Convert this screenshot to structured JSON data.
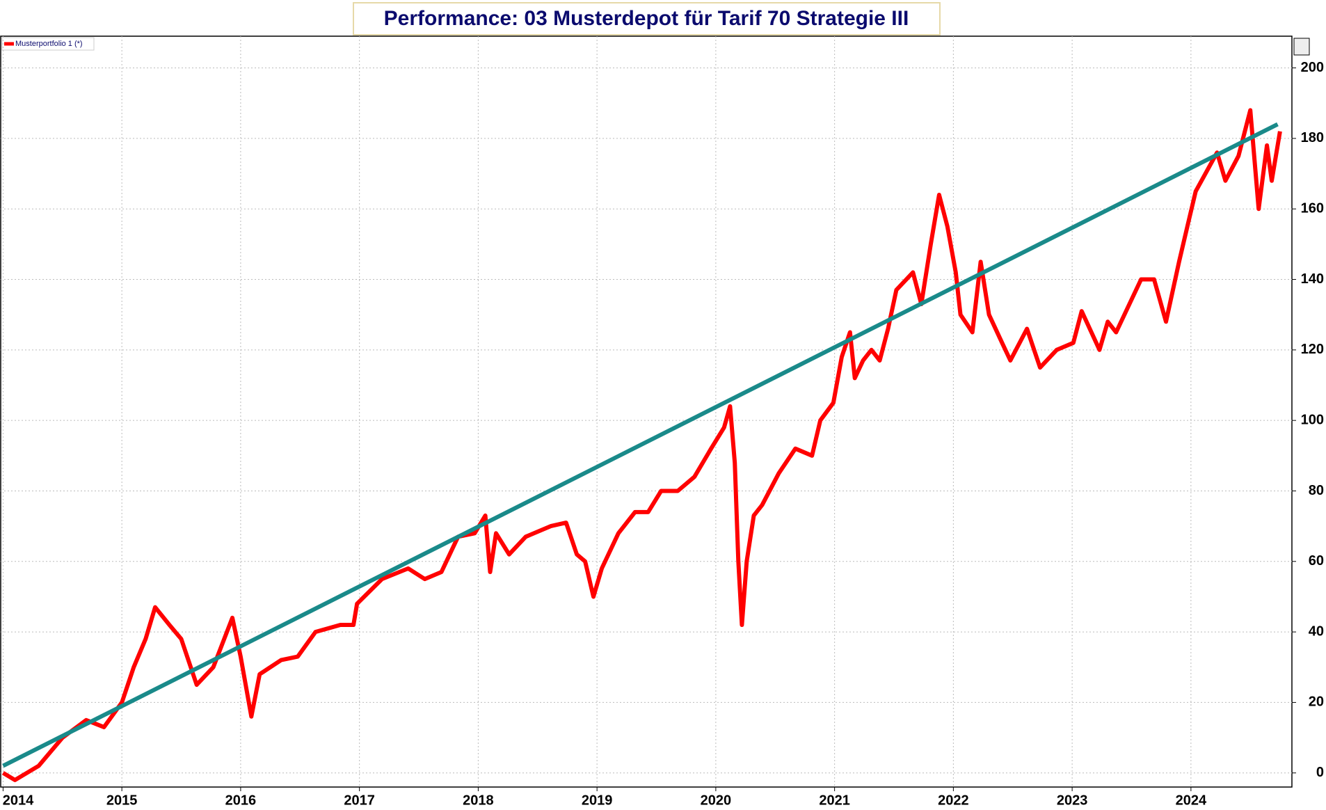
{
  "chart_data": {
    "type": "line",
    "title": "Performance: 03 Musterdepot für Tarif 70 Strategie III",
    "series": [
      {
        "name": "Musterportfolio 1 (*)",
        "color": "#ff0000",
        "x": [
          2014.0,
          2014.1,
          2014.3,
          2014.5,
          2014.7,
          2014.85,
          2015.0,
          2015.1,
          2015.2,
          2015.28,
          2015.4,
          2015.5,
          2015.63,
          2015.77,
          2015.93,
          2016.0,
          2016.09,
          2016.16,
          2016.34,
          2016.48,
          2016.63,
          2016.84,
          2016.95,
          2016.98,
          2017.19,
          2017.41,
          2017.55,
          2017.69,
          2017.83,
          2017.97,
          2018.06,
          2018.1,
          2018.15,
          2018.26,
          2018.4,
          2018.61,
          2018.74,
          2018.83,
          2018.9,
          2018.97,
          2019.04,
          2019.18,
          2019.32,
          2019.43,
          2019.54,
          2019.68,
          2019.82,
          2019.96,
          2020.07,
          2020.12,
          2020.16,
          2020.19,
          2020.22,
          2020.26,
          2020.32,
          2020.39,
          2020.53,
          2020.67,
          2020.81,
          2020.88,
          2020.99,
          2021.06,
          2021.13,
          2021.17,
          2021.24,
          2021.31,
          2021.38,
          2021.45,
          2021.52,
          2021.66,
          2021.73,
          2021.81,
          2021.88,
          2021.95,
          2022.02,
          2022.06,
          2022.16,
          2022.23,
          2022.3,
          2022.41,
          2022.48,
          2022.62,
          2022.73,
          2022.87,
          2023.01,
          2023.08,
          2023.23,
          2023.3,
          2023.37,
          2023.51,
          2023.58,
          2023.69,
          2023.79,
          2023.9,
          2023.97,
          2024.04,
          2024.22,
          2024.29,
          2024.4,
          2024.5,
          2024.57,
          2024.64,
          2024.68,
          2024.75
        ],
        "values": [
          0,
          -2,
          2,
          10,
          15,
          13,
          20,
          30,
          38,
          47,
          42,
          38,
          25,
          30,
          44,
          33,
          16,
          28,
          32,
          33,
          40,
          42,
          42,
          48,
          55,
          58,
          55,
          57,
          67,
          68,
          73,
          57,
          68,
          62,
          67,
          70,
          71,
          62,
          60,
          50,
          58,
          68,
          74,
          74,
          80,
          80,
          84,
          92,
          98,
          104,
          88,
          60,
          42,
          60,
          73,
          76,
          85,
          92,
          90,
          100,
          105,
          118,
          125,
          112,
          117,
          120,
          117,
          126,
          137,
          142,
          133,
          150,
          164,
          155,
          142,
          130,
          125,
          145,
          130,
          122,
          117,
          126,
          115,
          120,
          122,
          131,
          120,
          128,
          125,
          135,
          140,
          140,
          128,
          145,
          155,
          165,
          176,
          168,
          175,
          188,
          160,
          178,
          168,
          182
        ]
      },
      {
        "color": "#1a8a8a",
        "x": [
          2014.0,
          2024.73
        ],
        "values": [
          2,
          184
        ]
      }
    ],
    "xlim": [
      2013.98,
      2024.85
    ],
    "xticks": [
      2014,
      2015,
      2016,
      2017,
      2018,
      2019,
      2020,
      2021,
      2022,
      2023,
      2024
    ],
    "ylim": [
      -4,
      209
    ],
    "yticks": [
      0,
      20,
      40,
      60,
      80,
      100,
      120,
      140,
      160,
      180,
      200
    ],
    "grid": true
  }
}
